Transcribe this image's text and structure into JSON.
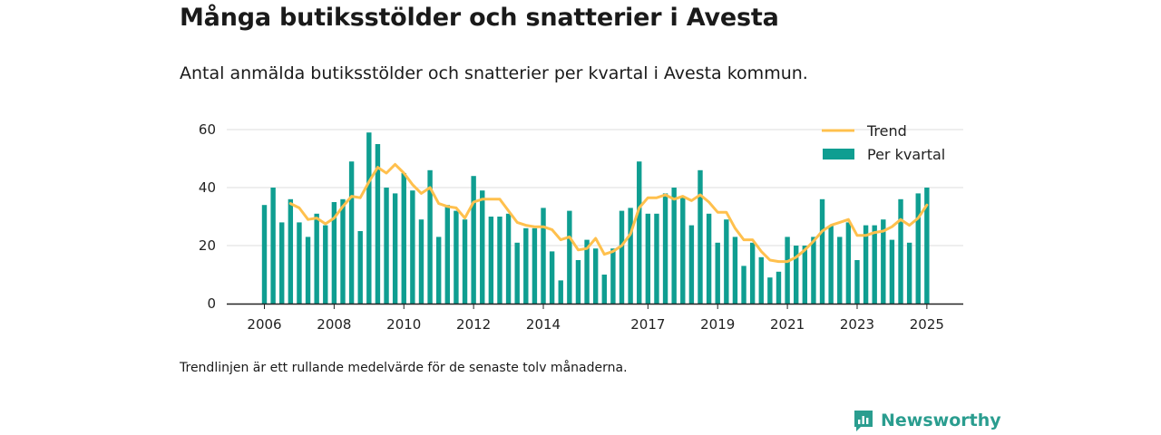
{
  "title": "Många butiksstölder och snatterier i Avesta",
  "subtitle": "Antal anmälda butiksstölder och snatterier per kvartal i Avesta kommun.",
  "footnote": "Trendlinjen är ett rullande medelvärde för de senaste tolv månaderna.",
  "brand": {
    "name": "Newsworthy",
    "icon": "newsworthy-logo-icon"
  },
  "colors": {
    "bar": "#0f9e91",
    "trend": "#ffc04d",
    "axis": "#222222",
    "grid": "#dddddd"
  },
  "chart_data": {
    "type": "bar",
    "title": "Många butiksstölder och snatterier i Avesta",
    "xlabel": "",
    "ylabel": "",
    "ylim": [
      0,
      60
    ],
    "yticks": [
      0,
      20,
      40,
      60
    ],
    "xticks": [
      {
        "label": "2006",
        "index": 0
      },
      {
        "label": "2008",
        "index": 8
      },
      {
        "label": "2010",
        "index": 16
      },
      {
        "label": "2012",
        "index": 24
      },
      {
        "label": "2014",
        "index": 32
      },
      {
        "label": "2017",
        "index": 44
      },
      {
        "label": "2019",
        "index": 52
      },
      {
        "label": "2021",
        "index": 60
      },
      {
        "label": "2023",
        "index": 68
      },
      {
        "label": "2025",
        "index": 76
      }
    ],
    "grid": true,
    "legend_position": "top-right",
    "series": [
      {
        "name": "Per kvartal",
        "type": "bar",
        "values": [
          34,
          40,
          28,
          36,
          28,
          23,
          31,
          27,
          35,
          36,
          49,
          25,
          59,
          55,
          40,
          38,
          45,
          39,
          29,
          46,
          23,
          34,
          32,
          29,
          44,
          39,
          30,
          30,
          31,
          21,
          26,
          26,
          33,
          18,
          8,
          32,
          15,
          22,
          19,
          10,
          19,
          32,
          33,
          49,
          31,
          31,
          38,
          40,
          37,
          27,
          46,
          31,
          21,
          29,
          23,
          13,
          21,
          16,
          9,
          11,
          23,
          20,
          20,
          23,
          36,
          27,
          23,
          28,
          15,
          27,
          27,
          29,
          22,
          36,
          21,
          38,
          40
        ]
      },
      {
        "name": "Trend",
        "type": "line",
        "values": [
          null,
          null,
          null,
          34.5,
          33,
          29,
          29.5,
          27.5,
          29.5,
          33.5,
          37,
          36.5,
          42,
          47,
          45,
          48,
          45,
          41,
          38,
          40,
          34.5,
          33.5,
          33,
          29.5,
          35,
          36,
          36,
          36,
          32,
          28,
          27,
          26.5,
          26.5,
          25.5,
          22,
          23,
          18.5,
          19,
          22.5,
          17,
          18,
          20,
          24,
          33,
          36.5,
          36.5,
          37.5,
          36,
          37,
          35.5,
          37.5,
          35,
          31.5,
          31.5,
          26,
          22,
          22,
          18,
          15,
          14.5,
          14.5,
          16,
          18.5,
          21.5,
          25,
          27,
          28,
          29,
          23.5,
          23.5,
          24.5,
          25,
          26.5,
          29,
          27,
          29.5,
          34
        ]
      }
    ]
  }
}
